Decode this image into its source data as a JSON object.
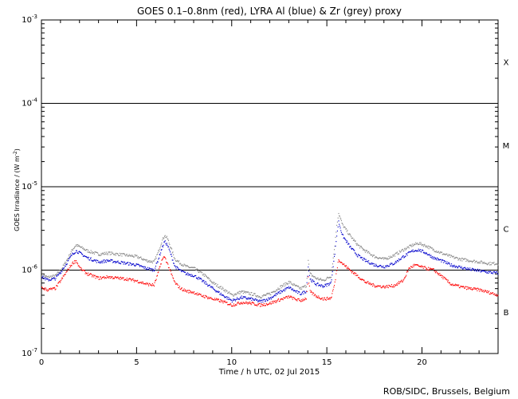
{
  "chart_data": {
    "type": "scatter",
    "title": "GOES 0.1–0.8nm (red), LYRA Al (blue) & Zr (grey) proxy",
    "xlabel": "Time / h UTC, 02 Jul 2015",
    "ylabel_main": "GOES Irradiance / (W m",
    "ylabel_sup": "-2",
    "ylabel_close": ")",
    "xlim": [
      0,
      24
    ],
    "ylim": [
      1e-07,
      0.001
    ],
    "yscale": "log",
    "xticks": [
      0,
      5,
      10,
      15,
      20
    ],
    "xtick_labels": [
      "0",
      "5",
      "10",
      "15",
      "20"
    ],
    "yticks": [
      {
        "value": 1e-07,
        "base": "10",
        "exp": "-7"
      },
      {
        "value": 1e-06,
        "base": "10",
        "exp": "-6"
      },
      {
        "value": 1e-05,
        "base": "10",
        "exp": "-5"
      },
      {
        "value": 0.0001,
        "base": "10",
        "exp": "-4"
      },
      {
        "value": 0.001,
        "base": "10",
        "exp": "-3"
      }
    ],
    "reference_lines": [
      1e-06,
      1e-05,
      0.0001
    ],
    "flare_classes": [
      {
        "label": "X",
        "value": 0.000316
      },
      {
        "label": "M",
        "value": 3.16e-05
      },
      {
        "label": "C",
        "value": 3.16e-06
      },
      {
        "label": "B",
        "value": 3.16e-07
      }
    ],
    "series": [
      {
        "color": "#888888",
        "points": [
          [
            0,
            8.8e-07
          ],
          [
            0.3,
            8.2e-07
          ],
          [
            0.7,
            8.5e-07
          ],
          [
            1.0,
            1e-06
          ],
          [
            1.3,
            1.3e-06
          ],
          [
            1.6,
            1.75e-06
          ],
          [
            1.8,
            2e-06
          ],
          [
            2.0,
            1.9e-06
          ],
          [
            2.4,
            1.7e-06
          ],
          [
            3.0,
            1.55e-06
          ],
          [
            3.5,
            1.6e-06
          ],
          [
            4.0,
            1.55e-06
          ],
          [
            4.5,
            1.5e-06
          ],
          [
            5.0,
            1.45e-06
          ],
          [
            5.5,
            1.3e-06
          ],
          [
            5.9,
            1.25e-06
          ],
          [
            6.1,
            1.6e-06
          ],
          [
            6.3,
            2.2e-06
          ],
          [
            6.45,
            2.6e-06
          ],
          [
            6.6,
            2.4e-06
          ],
          [
            6.8,
            1.8e-06
          ],
          [
            7.0,
            1.35e-06
          ],
          [
            7.3,
            1.2e-06
          ],
          [
            7.6,
            1.1e-06
          ],
          [
            8.0,
            1.05e-06
          ],
          [
            8.3,
            9.5e-07
          ],
          [
            8.6,
            8.5e-07
          ],
          [
            9.0,
            7e-07
          ],
          [
            9.5,
            6e-07
          ],
          [
            10.0,
            5e-07
          ],
          [
            10.5,
            5.5e-07
          ],
          [
            11.0,
            5.2e-07
          ],
          [
            11.5,
            4.8e-07
          ],
          [
            12.0,
            5.2e-07
          ],
          [
            12.5,
            6.2e-07
          ],
          [
            13.0,
            7.2e-07
          ],
          [
            13.3,
            6.5e-07
          ],
          [
            13.6,
            6e-07
          ],
          [
            13.9,
            6.5e-07
          ],
          [
            14.0,
            1.3e-06
          ],
          [
            14.1,
            9e-07
          ],
          [
            14.4,
            8e-07
          ],
          [
            14.8,
            7.5e-07
          ],
          [
            15.2,
            8.5e-07
          ],
          [
            15.4,
            2e-06
          ],
          [
            15.5,
            3.5e-06
          ],
          [
            15.6,
            4.8e-06
          ],
          [
            15.8,
            3.5e-06
          ],
          [
            16.2,
            2.6e-06
          ],
          [
            16.6,
            2e-06
          ],
          [
            17.0,
            1.7e-06
          ],
          [
            17.5,
            1.45e-06
          ],
          [
            18.0,
            1.35e-06
          ],
          [
            18.5,
            1.5e-06
          ],
          [
            19.0,
            1.75e-06
          ],
          [
            19.5,
            2e-06
          ],
          [
            19.8,
            2.1e-06
          ],
          [
            20.2,
            1.95e-06
          ],
          [
            20.6,
            1.75e-06
          ],
          [
            21.0,
            1.6e-06
          ],
          [
            21.5,
            1.45e-06
          ],
          [
            22.0,
            1.35e-06
          ],
          [
            22.5,
            1.3e-06
          ],
          [
            23.0,
            1.25e-06
          ],
          [
            23.5,
            1.2e-06
          ],
          [
            24.0,
            1.2e-06
          ]
        ]
      },
      {
        "color": "#0000cc",
        "points": [
          [
            0,
            8.3e-07
          ],
          [
            0.3,
            7.6e-07
          ],
          [
            0.7,
            7.9e-07
          ],
          [
            1.0,
            9.5e-07
          ],
          [
            1.3,
            1.2e-06
          ],
          [
            1.6,
            1.55e-06
          ],
          [
            1.8,
            1.7e-06
          ],
          [
            2.0,
            1.6e-06
          ],
          [
            2.4,
            1.4e-06
          ],
          [
            3.0,
            1.25e-06
          ],
          [
            3.5,
            1.3e-06
          ],
          [
            4.0,
            1.25e-06
          ],
          [
            4.5,
            1.2e-06
          ],
          [
            5.0,
            1.15e-06
          ],
          [
            5.5,
            1.05e-06
          ],
          [
            5.9,
            1e-06
          ],
          [
            6.1,
            1.3e-06
          ],
          [
            6.3,
            1.8e-06
          ],
          [
            6.45,
            2.2e-06
          ],
          [
            6.6,
            2e-06
          ],
          [
            6.8,
            1.5e-06
          ],
          [
            7.0,
            1.1e-06
          ],
          [
            7.3,
            9.8e-07
          ],
          [
            7.6,
            9e-07
          ],
          [
            8.0,
            8.6e-07
          ],
          [
            8.3,
            7.8e-07
          ],
          [
            8.6,
            7e-07
          ],
          [
            9.0,
            6e-07
          ],
          [
            9.5,
            5e-07
          ],
          [
            10.0,
            4.3e-07
          ],
          [
            10.5,
            4.7e-07
          ],
          [
            11.0,
            4.5e-07
          ],
          [
            11.5,
            4.2e-07
          ],
          [
            12.0,
            4.6e-07
          ],
          [
            12.5,
            5.4e-07
          ],
          [
            13.0,
            6.2e-07
          ],
          [
            13.3,
            5.6e-07
          ],
          [
            13.6,
            5.2e-07
          ],
          [
            13.9,
            5.6e-07
          ],
          [
            14.0,
            1.1e-06
          ],
          [
            14.1,
            7.8e-07
          ],
          [
            14.4,
            6.8e-07
          ],
          [
            14.8,
            6.4e-07
          ],
          [
            15.2,
            7e-07
          ],
          [
            15.4,
            1.6e-06
          ],
          [
            15.5,
            2.6e-06
          ],
          [
            15.6,
            3.8e-06
          ],
          [
            15.8,
            2.6e-06
          ],
          [
            16.2,
            1.9e-06
          ],
          [
            16.6,
            1.5e-06
          ],
          [
            17.0,
            1.3e-06
          ],
          [
            17.5,
            1.15e-06
          ],
          [
            18.0,
            1.1e-06
          ],
          [
            18.5,
            1.2e-06
          ],
          [
            19.0,
            1.45e-06
          ],
          [
            19.5,
            1.7e-06
          ],
          [
            19.8,
            1.75e-06
          ],
          [
            20.2,
            1.6e-06
          ],
          [
            20.6,
            1.4e-06
          ],
          [
            21.0,
            1.3e-06
          ],
          [
            21.5,
            1.15e-06
          ],
          [
            22.0,
            1.08e-06
          ],
          [
            22.5,
            1.02e-06
          ],
          [
            23.0,
            9.8e-07
          ],
          [
            23.5,
            9.4e-07
          ],
          [
            24.0,
            9.2e-07
          ]
        ]
      },
      {
        "color": "#ff0000",
        "points": [
          [
            0,
            6.1e-07
          ],
          [
            0.3,
            5.8e-07
          ],
          [
            0.7,
            6e-07
          ],
          [
            1.0,
            7.5e-07
          ],
          [
            1.3,
            9.5e-07
          ],
          [
            1.6,
            1.2e-06
          ],
          [
            1.8,
            1.3e-06
          ],
          [
            2.0,
            1.05e-06
          ],
          [
            2.4,
            9e-07
          ],
          [
            3.0,
            8e-07
          ],
          [
            3.5,
            8.3e-07
          ],
          [
            4.0,
            8e-07
          ],
          [
            4.5,
            7.8e-07
          ],
          [
            5.0,
            7.4e-07
          ],
          [
            5.5,
            6.8e-07
          ],
          [
            5.9,
            6.6e-07
          ],
          [
            6.1,
            9e-07
          ],
          [
            6.3,
            1.3e-06
          ],
          [
            6.45,
            1.45e-06
          ],
          [
            6.6,
            1.2e-06
          ],
          [
            6.8,
            9e-07
          ],
          [
            7.0,
            7e-07
          ],
          [
            7.3,
            6e-07
          ],
          [
            7.6,
            5.6e-07
          ],
          [
            8.0,
            5.4e-07
          ],
          [
            8.3,
            5e-07
          ],
          [
            8.6,
            4.8e-07
          ],
          [
            9.0,
            4.5e-07
          ],
          [
            9.5,
            4.2e-07
          ],
          [
            10.0,
            3.8e-07
          ],
          [
            10.5,
            4.1e-07
          ],
          [
            11.0,
            4e-07
          ],
          [
            11.5,
            3.8e-07
          ],
          [
            12.0,
            4e-07
          ],
          [
            12.5,
            4.4e-07
          ],
          [
            13.0,
            4.8e-07
          ],
          [
            13.3,
            4.5e-07
          ],
          [
            13.6,
            4.3e-07
          ],
          [
            13.9,
            4.6e-07
          ],
          [
            14.0,
            8e-07
          ],
          [
            14.1,
            5.5e-07
          ],
          [
            14.4,
            4.9e-07
          ],
          [
            14.8,
            4.5e-07
          ],
          [
            15.2,
            4.6e-07
          ],
          [
            15.4,
            7e-07
          ],
          [
            15.5,
            1e-06
          ],
          [
            15.6,
            1.35e-06
          ],
          [
            15.8,
            1.2e-06
          ],
          [
            16.2,
            1e-06
          ],
          [
            16.6,
            8.5e-07
          ],
          [
            17.0,
            7.2e-07
          ],
          [
            17.5,
            6.5e-07
          ],
          [
            18.0,
            6.3e-07
          ],
          [
            18.5,
            6.5e-07
          ],
          [
            19.0,
            7.5e-07
          ],
          [
            19.3,
            1.05e-06
          ],
          [
            19.6,
            1.15e-06
          ],
          [
            19.9,
            1.1e-06
          ],
          [
            20.2,
            1.05e-06
          ],
          [
            20.6,
            1e-06
          ],
          [
            21.0,
            8.5e-07
          ],
          [
            21.5,
            6.8e-07
          ],
          [
            22.0,
            6.3e-07
          ],
          [
            22.5,
            6e-07
          ],
          [
            23.0,
            5.8e-07
          ],
          [
            23.5,
            5.4e-07
          ],
          [
            24.0,
            5e-07
          ]
        ]
      }
    ]
  },
  "credit": "ROB/SIDC, Brussels, Belgium"
}
